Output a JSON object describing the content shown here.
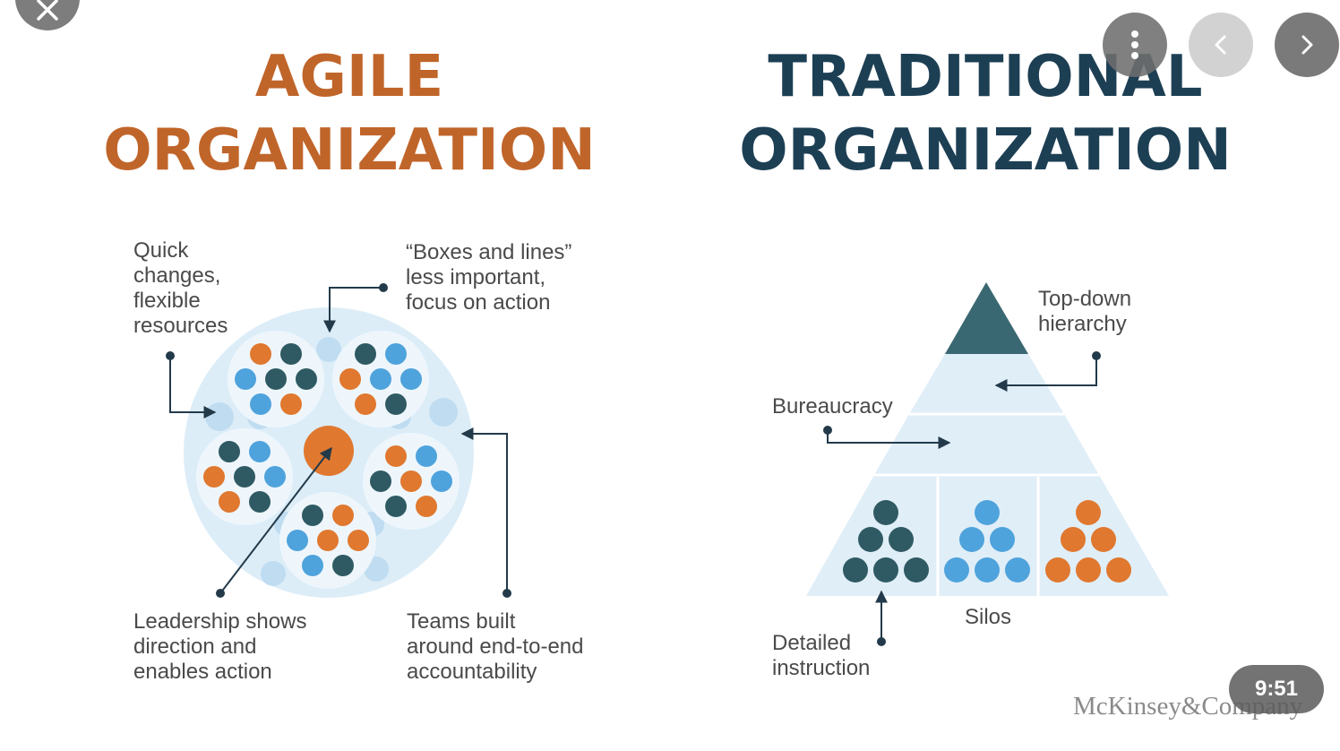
{
  "agile": {
    "title": [
      "AGILE",
      "ORGANIZATION"
    ],
    "labels": {
      "quick": [
        "Quick",
        "changes,",
        "flexible",
        "resources"
      ],
      "boxes": [
        "“Boxes and lines”",
        "less important,",
        "focus on action"
      ],
      "leadership": [
        "Leadership shows",
        "direction and",
        "enables action"
      ],
      "teams": [
        "Teams built",
        "around end-to-end",
        "accountability"
      ]
    }
  },
  "traditional": {
    "title": [
      "TRADITIONAL",
      "ORGANIZATION"
    ],
    "labels": {
      "topdown": [
        "Top-down",
        "hierarchy"
      ],
      "bureaucracy": "Bureaucracy",
      "silos": "Silos",
      "detailed": [
        "Detailed",
        "instruction"
      ]
    }
  },
  "brand": "McKinsey&Company",
  "video_time": "9:51",
  "icons": {
    "close": "close-icon",
    "more": "more-vertical-icon",
    "prev": "chevron-left-icon",
    "next": "chevron-right-icon"
  },
  "colors": {
    "orange": "#e0782f",
    "dark_teal": "#2f5a63",
    "light_blue": "#4fa3dc",
    "pale_blue": "#dcedf8",
    "agile_title": "#c0652a",
    "traditional_title": "#1d3f54"
  }
}
